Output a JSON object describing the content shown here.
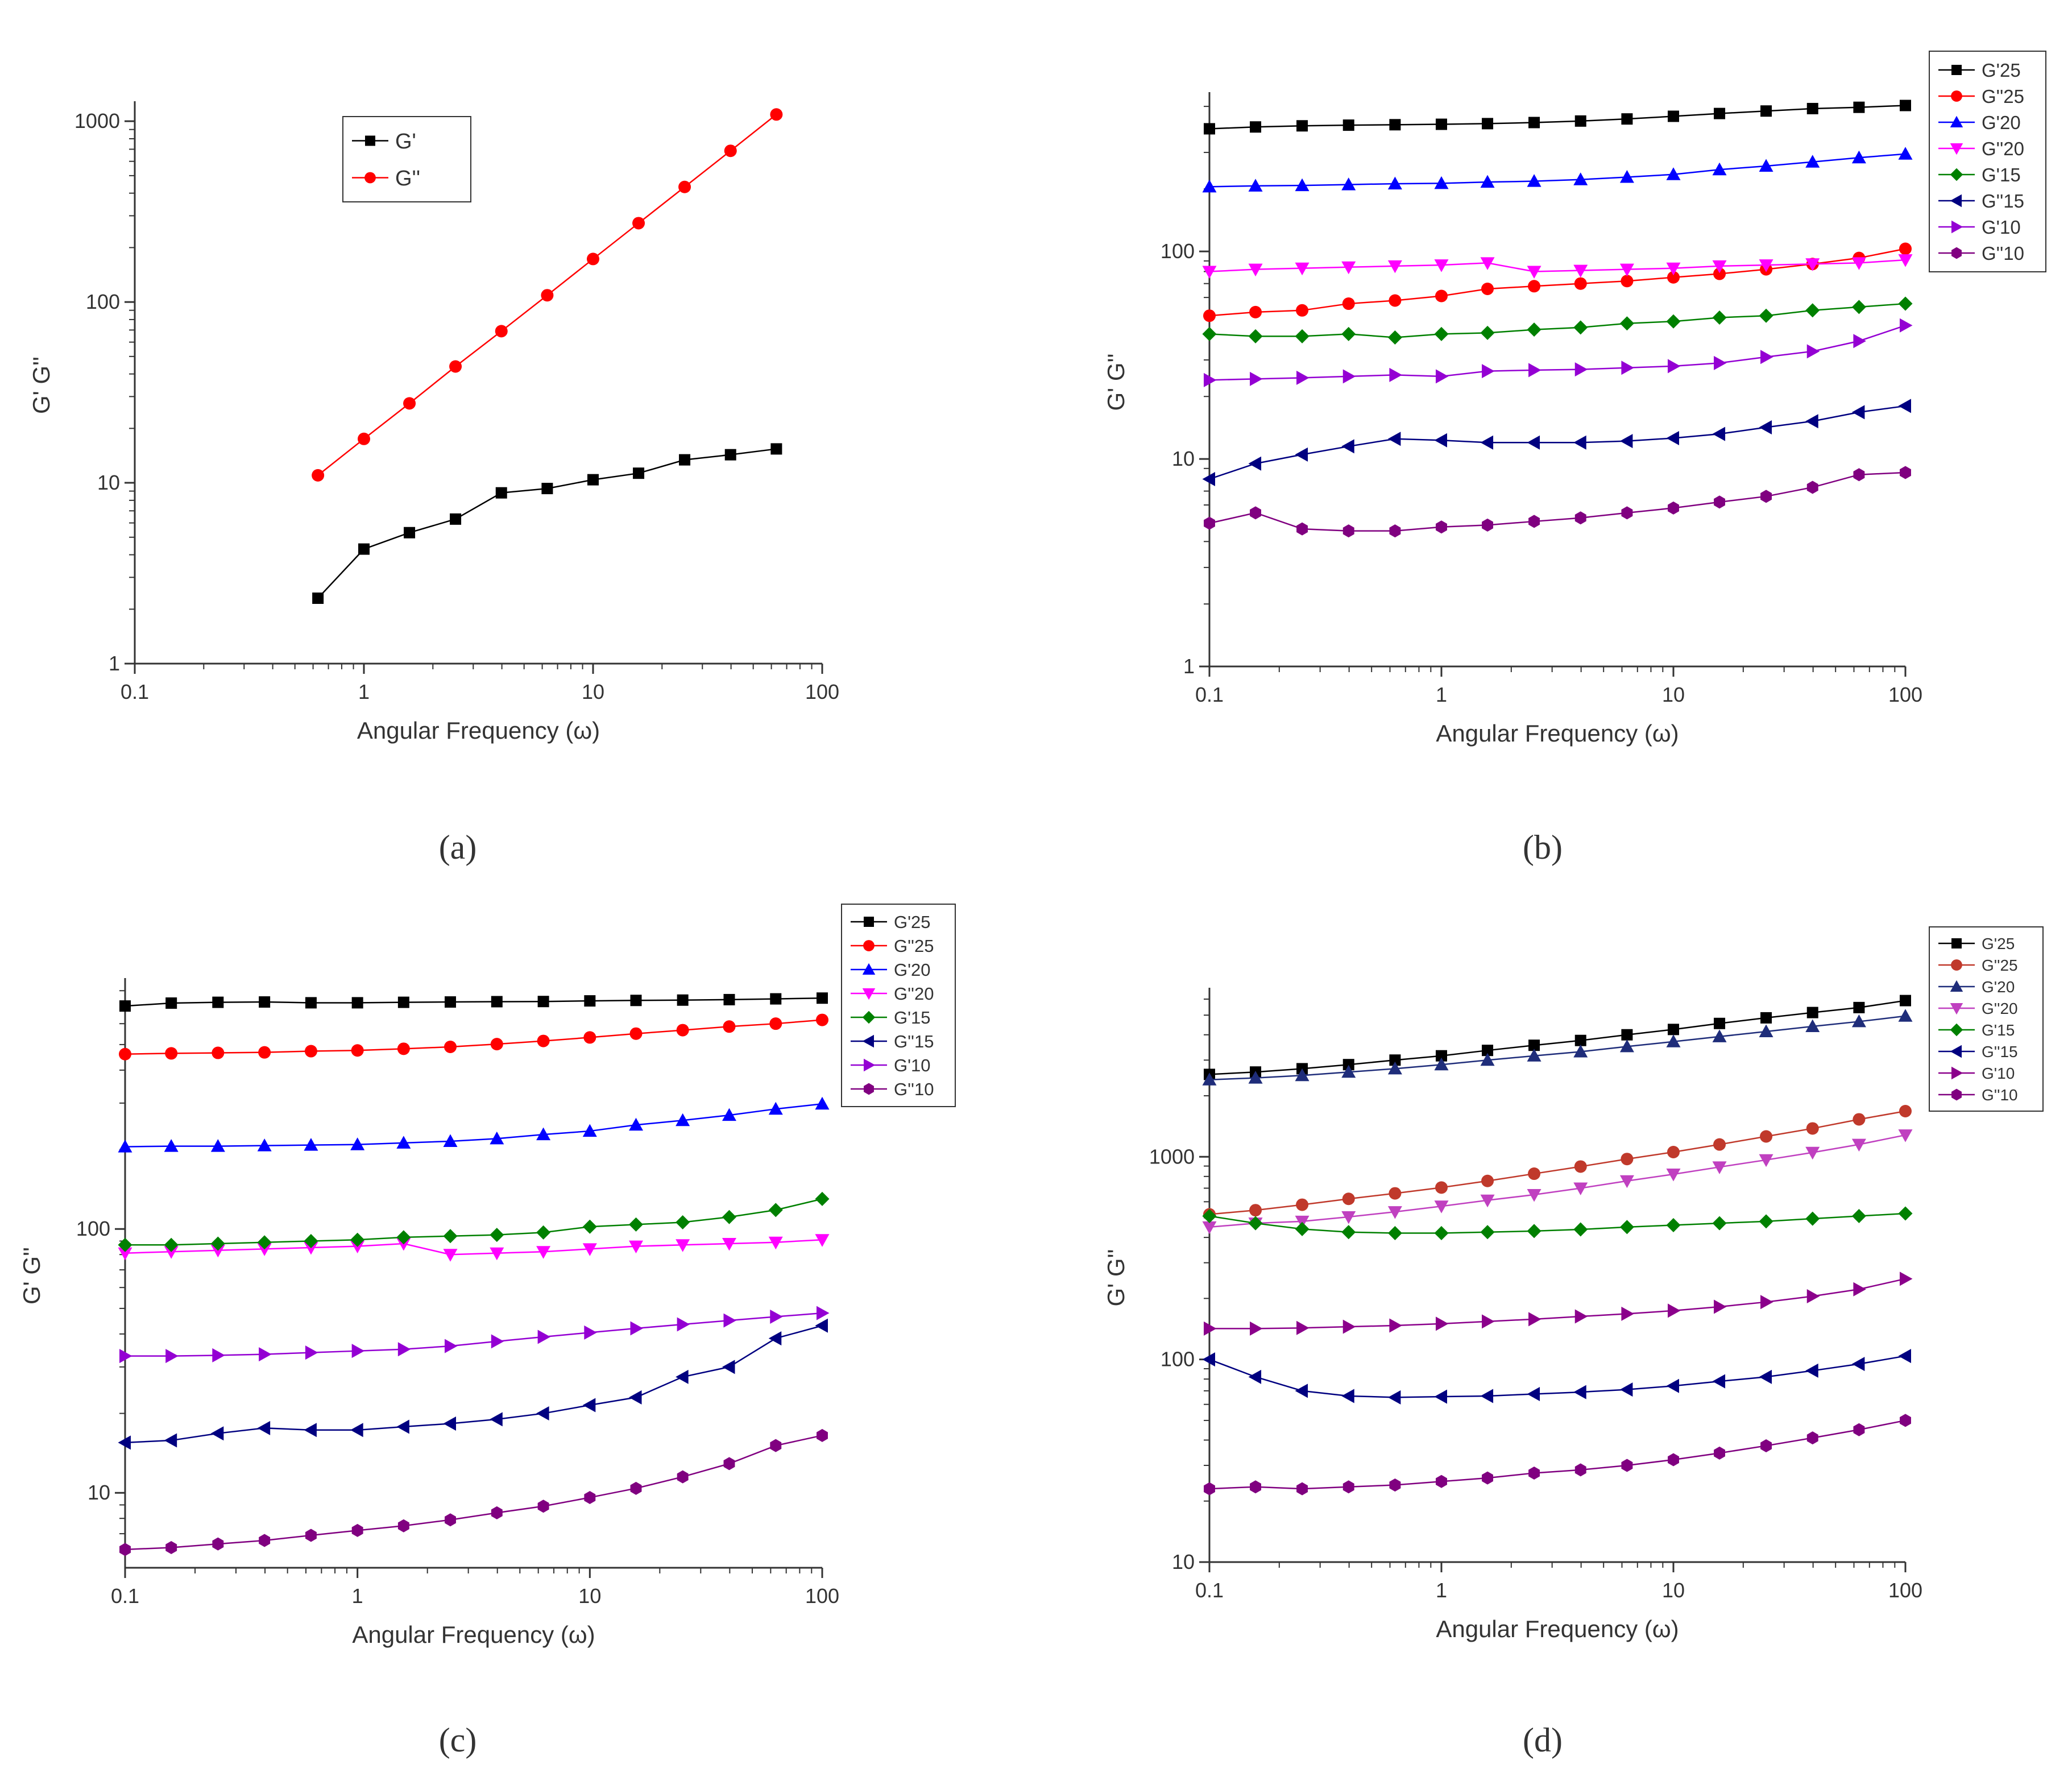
{
  "panels": [
    {
      "caption": "(a)",
      "chart_data": {
        "type": "line",
        "xscale": "log",
        "yscale": "log",
        "xlabel": "Angular Frequency (ω)",
        "ylabel": "G' G''",
        "xlim": [
          0.1,
          100
        ],
        "ylim": [
          1,
          1200
        ],
        "xticks": [
          {
            "value": 0.1,
            "label": "0.1"
          },
          {
            "value": 1,
            "label": "1"
          },
          {
            "value": 10,
            "label": "10"
          },
          {
            "value": 100,
            "label": "100"
          }
        ],
        "yticks": [
          {
            "value": 1,
            "label": "1"
          },
          {
            "value": 10,
            "label": "10"
          },
          {
            "value": 100,
            "label": "100"
          },
          {
            "value": 1000,
            "label": "1000"
          }
        ],
        "legend_position": "top-center",
        "series": [
          {
            "name": "G'",
            "color": "#000000",
            "marker": "square",
            "x": [
              0.63,
              1,
              1.58,
              2.51,
              3.98,
              6.31,
              10,
              15.8,
              25.1,
              39.8,
              63.1
            ],
            "y": [
              2.3,
              4.3,
              5.3,
              6.3,
              8.8,
              9.3,
              10.4,
              11.3,
              13.4,
              14.3,
              15.4
            ]
          },
          {
            "name": "G''",
            "color": "#ff0000",
            "marker": "circle",
            "x": [
              0.63,
              1,
              1.58,
              2.51,
              3.98,
              6.31,
              10,
              15.8,
              25.1,
              39.8,
              63.1
            ],
            "y": [
              11,
              17.5,
              27.5,
              44,
              69,
              109,
              173,
              273,
              433,
              686,
              1090
            ]
          }
        ]
      }
    },
    {
      "caption": "(b)",
      "chart_data": {
        "type": "line",
        "xscale": "log",
        "yscale": "log",
        "xlabel": "Angular Frequency (ω)",
        "ylabel": "G' G''",
        "xlim": [
          0.1,
          100
        ],
        "ylim": [
          1,
          550
        ],
        "xticks": [
          {
            "value": 0.1,
            "label": "0.1"
          },
          {
            "value": 1,
            "label": "1"
          },
          {
            "value": 10,
            "label": "10"
          },
          {
            "value": 100,
            "label": "100"
          }
        ],
        "yticks": [
          {
            "value": 1,
            "label": "1"
          },
          {
            "value": 10,
            "label": "10"
          },
          {
            "value": 100,
            "label": "100"
          }
        ],
        "legend_position": "top-right outside",
        "x": [
          0.1,
          0.158,
          0.251,
          0.398,
          0.631,
          1,
          1.58,
          2.51,
          3.98,
          6.31,
          10,
          15.8,
          25.1,
          39.8,
          63.1,
          100
        ],
        "series": [
          {
            "name": "G'25",
            "color": "#000000",
            "marker": "square",
            "y": [
              390,
              398,
              403,
              406,
              408,
              410,
              413,
              418,
              425,
              435,
              448,
              462,
              475,
              488,
              495,
              505
            ]
          },
          {
            "name": "G''25",
            "color": "#ff0000",
            "marker": "circle",
            "y": [
              49,
              51,
              52,
              56,
              58,
              61,
              66,
              68,
              70,
              72,
              75,
              78,
              82,
              87,
              93,
              103
            ]
          },
          {
            "name": "G'20",
            "color": "#0000ff",
            "marker": "triangle-up",
            "y": [
              205,
              207,
              208,
              210,
              212,
              213,
              216,
              218,
              222,
              228,
              235,
              248,
              258,
              270,
              283,
              295
            ]
          },
          {
            "name": "G''20",
            "color": "#ff00ff",
            "marker": "triangle-down",
            "y": [
              80,
              82,
              83,
              84,
              85,
              86,
              88,
              80,
              81,
              82,
              83,
              85,
              86,
              87,
              88,
              91
            ]
          },
          {
            "name": "G'15",
            "color": "#008000",
            "marker": "diamond",
            "y": [
              40,
              39,
              39,
              40,
              38.5,
              40,
              40.5,
              42,
              43,
              45,
              46,
              48,
              49,
              52,
              54,
              56
            ]
          },
          {
            "name": "G''15",
            "color": "#000080",
            "marker": "triangle-left",
            "y": [
              8,
              9.5,
              10.5,
              11.5,
              12.5,
              12.3,
              12,
              12,
              12,
              12.2,
              12.6,
              13.2,
              14.2,
              15.2,
              16.8,
              18
            ]
          },
          {
            "name": "G'10",
            "color": "#9400d3",
            "marker": "triangle-right",
            "y": [
              24,
              24.3,
              24.6,
              25,
              25.4,
              25,
              26.5,
              26.8,
              27,
              27.5,
              28,
              29,
              31,
              33,
              37,
              44
            ]
          },
          {
            "name": "G''10",
            "color": "#800080",
            "marker": "hexagon",
            "y": [
              4.9,
              5.5,
              4.6,
              4.5,
              4.5,
              4.7,
              4.8,
              5,
              5.2,
              5.5,
              5.8,
              6.2,
              6.6,
              7.3,
              8.4,
              8.6
            ]
          }
        ]
      }
    },
    {
      "caption": "(c)",
      "chart_data": {
        "type": "line",
        "xscale": "log",
        "yscale": "log",
        "xlabel": "Angular Frequency (ω)",
        "ylabel": "G' G''",
        "xlim": [
          0.1,
          100
        ],
        "ylim": [
          5.2,
          850
        ],
        "xticks": [
          {
            "value": 0.1,
            "label": "0.1"
          },
          {
            "value": 1,
            "label": "1"
          },
          {
            "value": 10,
            "label": "10"
          },
          {
            "value": 100,
            "label": "100"
          }
        ],
        "yticks": [
          {
            "value": 10,
            "label": "10"
          },
          {
            "value": 100,
            "label": "100"
          }
        ],
        "legend_position": "top-right outside",
        "x": [
          0.1,
          0.158,
          0.251,
          0.398,
          0.631,
          1,
          1.58,
          2.51,
          3.98,
          6.31,
          10,
          15.8,
          25.1,
          39.8,
          63.1,
          100
        ],
        "series": [
          {
            "name": "G'25",
            "color": "#000000",
            "marker": "square",
            "y": [
              700,
              718,
              723,
              725,
              720,
              720,
              723,
              725,
              727,
              728,
              732,
              735,
              737,
              740,
              745,
              750
            ]
          },
          {
            "name": "G''25",
            "color": "#ff0000",
            "marker": "circle",
            "y": [
              460,
              463,
              465,
              467,
              472,
              475,
              482,
              490,
              502,
              516,
              532,
              550,
              567,
              585,
              600,
              620
            ]
          },
          {
            "name": "G'20",
            "color": "#0000ff",
            "marker": "triangle-up",
            "y": [
              205,
              206,
              206,
              207,
              208,
              209,
              212,
              215,
              220,
              228,
              235,
              248,
              258,
              270,
              285,
              298
            ]
          },
          {
            "name": "G''20",
            "color": "#ff00ff",
            "marker": "triangle-down",
            "y": [
              81,
              82,
              83,
              84,
              85,
              86,
              88,
              80,
              81,
              82,
              84,
              86,
              87,
              88,
              89,
              91
            ]
          },
          {
            "name": "G'15",
            "color": "#008000",
            "marker": "diamond",
            "y": [
              87,
              87,
              88,
              89,
              90,
              91,
              93,
              94,
              95,
              97,
              102,
              104,
              106,
              111,
              118,
              130
            ]
          },
          {
            "name": "G''15",
            "color": "#000080",
            "marker": "triangle-left",
            "y": [
              15.5,
              15.8,
              16.8,
              17.6,
              17.3,
              17.3,
              17.8,
              18.3,
              19,
              20,
              21.5,
              23,
              27.5,
              30,
              38.5,
              43
            ]
          },
          {
            "name": "G'10",
            "color": "#9400d3",
            "marker": "triangle-right",
            "y": [
              33,
              33,
              33.2,
              33.5,
              34,
              34.5,
              35,
              36,
              37.5,
              39,
              40.5,
              42,
              43.5,
              45,
              46.5,
              48
            ]
          },
          {
            "name": "G''10",
            "color": "#800080",
            "marker": "hexagon",
            "y": [
              6.1,
              6.2,
              6.4,
              6.6,
              6.9,
              7.2,
              7.5,
              7.9,
              8.4,
              8.9,
              9.6,
              10.4,
              11.5,
              12.9,
              15.1,
              16.5
            ]
          }
        ]
      }
    },
    {
      "caption": "(d)",
      "chart_data": {
        "type": "line",
        "xscale": "log",
        "yscale": "log",
        "xlabel": "Angular Frequency (ω)",
        "ylabel": "G' G''",
        "xlim": [
          0.1,
          100
        ],
        "ylim": [
          10,
          6400
        ],
        "xticks": [
          {
            "value": 0.1,
            "label": "0.1"
          },
          {
            "value": 1,
            "label": "1"
          },
          {
            "value": 10,
            "label": "10"
          },
          {
            "value": 100,
            "label": "100"
          }
        ],
        "yticks": [
          {
            "value": 10,
            "label": "10"
          },
          {
            "value": 100,
            "label": "100"
          },
          {
            "value": 1000,
            "label": "1000"
          }
        ],
        "legend_position": "top-right outside",
        "x": [
          0.1,
          0.158,
          0.251,
          0.398,
          0.631,
          1,
          1.58,
          2.51,
          3.98,
          6.31,
          10,
          15.8,
          25.1,
          39.8,
          63.1,
          100
        ],
        "series": [
          {
            "name": "G'25",
            "color": "#000000",
            "marker": "square",
            "y": [
              2550,
              2620,
              2720,
              2850,
              3000,
              3150,
              3350,
              3550,
              3750,
              4000,
              4250,
              4550,
              4850,
              5150,
              5450,
              5900
            ]
          },
          {
            "name": "G''25",
            "color": "#c0392b",
            "marker": "circle",
            "y": [
              520,
              545,
              580,
              620,
              660,
              705,
              760,
              825,
              895,
              975,
              1055,
              1150,
              1260,
              1380,
              1530,
              1680
            ]
          },
          {
            "name": "G'20",
            "color": "#1f2d7a",
            "marker": "triangle-up",
            "y": [
              2400,
              2450,
              2520,
              2620,
              2720,
              2850,
              3000,
              3150,
              3300,
              3500,
              3700,
              3920,
              4150,
              4400,
              4650,
              4950
            ]
          },
          {
            "name": "G''20",
            "color": "#c040c0",
            "marker": "triangle-down",
            "y": [
              450,
              470,
              480,
              505,
              535,
              570,
              610,
              650,
              700,
              760,
              820,
              890,
              965,
              1050,
              1150,
              1280
            ]
          },
          {
            "name": "G'15",
            "color": "#008000",
            "marker": "diamond",
            "y": [
              510,
              470,
              440,
              425,
              420,
              420,
              425,
              430,
              438,
              450,
              460,
              470,
              480,
              495,
              510,
              525
            ]
          },
          {
            "name": "G''15",
            "color": "#000080",
            "marker": "triangle-left",
            "y": [
              100,
              82,
              70,
              66,
              65,
              65.5,
              66,
              67.5,
              69,
              71,
              74,
              78,
              82,
              88,
              95,
              104
            ]
          },
          {
            "name": "G'10",
            "color": "#8b008b",
            "marker": "triangle-right",
            "y": [
              142,
              142,
              143,
              145,
              147,
              150,
              154,
              158,
              163,
              168,
              174,
              182,
              192,
              205,
              222,
              250
            ]
          },
          {
            "name": "G''10",
            "color": "#800080",
            "marker": "hexagon",
            "y": [
              23,
              23.5,
              23,
              23.5,
              24,
              25,
              26,
              27.5,
              28.5,
              30,
              32,
              34.5,
              37.5,
              41,
              45,
              50
            ]
          }
        ]
      }
    }
  ]
}
